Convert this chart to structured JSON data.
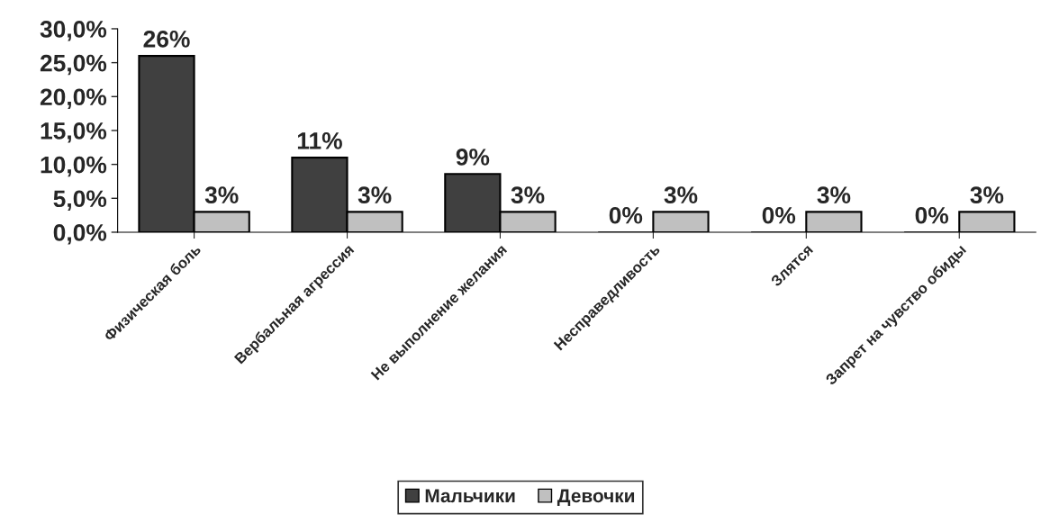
{
  "chart_data": {
    "type": "bar",
    "categories": [
      "Физическая боль",
      "Вербальная агрессия",
      "Не выполнение желания",
      "Несправедливость",
      "Злятся",
      "Запрет на чувство обиды"
    ],
    "series": [
      {
        "name": "Мальчики",
        "color": "#404040",
        "values": [
          26,
          11,
          8.6,
          0,
          0,
          0
        ],
        "value_labels": [
          "26%",
          "11%",
          "9%",
          "0%",
          "0%",
          "0%"
        ]
      },
      {
        "name": "Девочки",
        "color": "#c0c0c0",
        "values": [
          3,
          3,
          3,
          3,
          3,
          3
        ],
        "value_labels": [
          "3%",
          "3%",
          "3%",
          "3%",
          "3%",
          "3%"
        ]
      }
    ],
    "ylim": [
      0,
      30
    ],
    "yticks": [
      {
        "value": 0,
        "label": "0,0%"
      },
      {
        "value": 5,
        "label": "5,0%"
      },
      {
        "value": 10,
        "label": "10,0%"
      },
      {
        "value": 15,
        "label": "15,0%"
      },
      {
        "value": 20,
        "label": "20,0%"
      },
      {
        "value": 25,
        "label": "25,0%"
      },
      {
        "value": 30,
        "label": "30,0%"
      }
    ],
    "grid": false,
    "legend": "bottom"
  }
}
